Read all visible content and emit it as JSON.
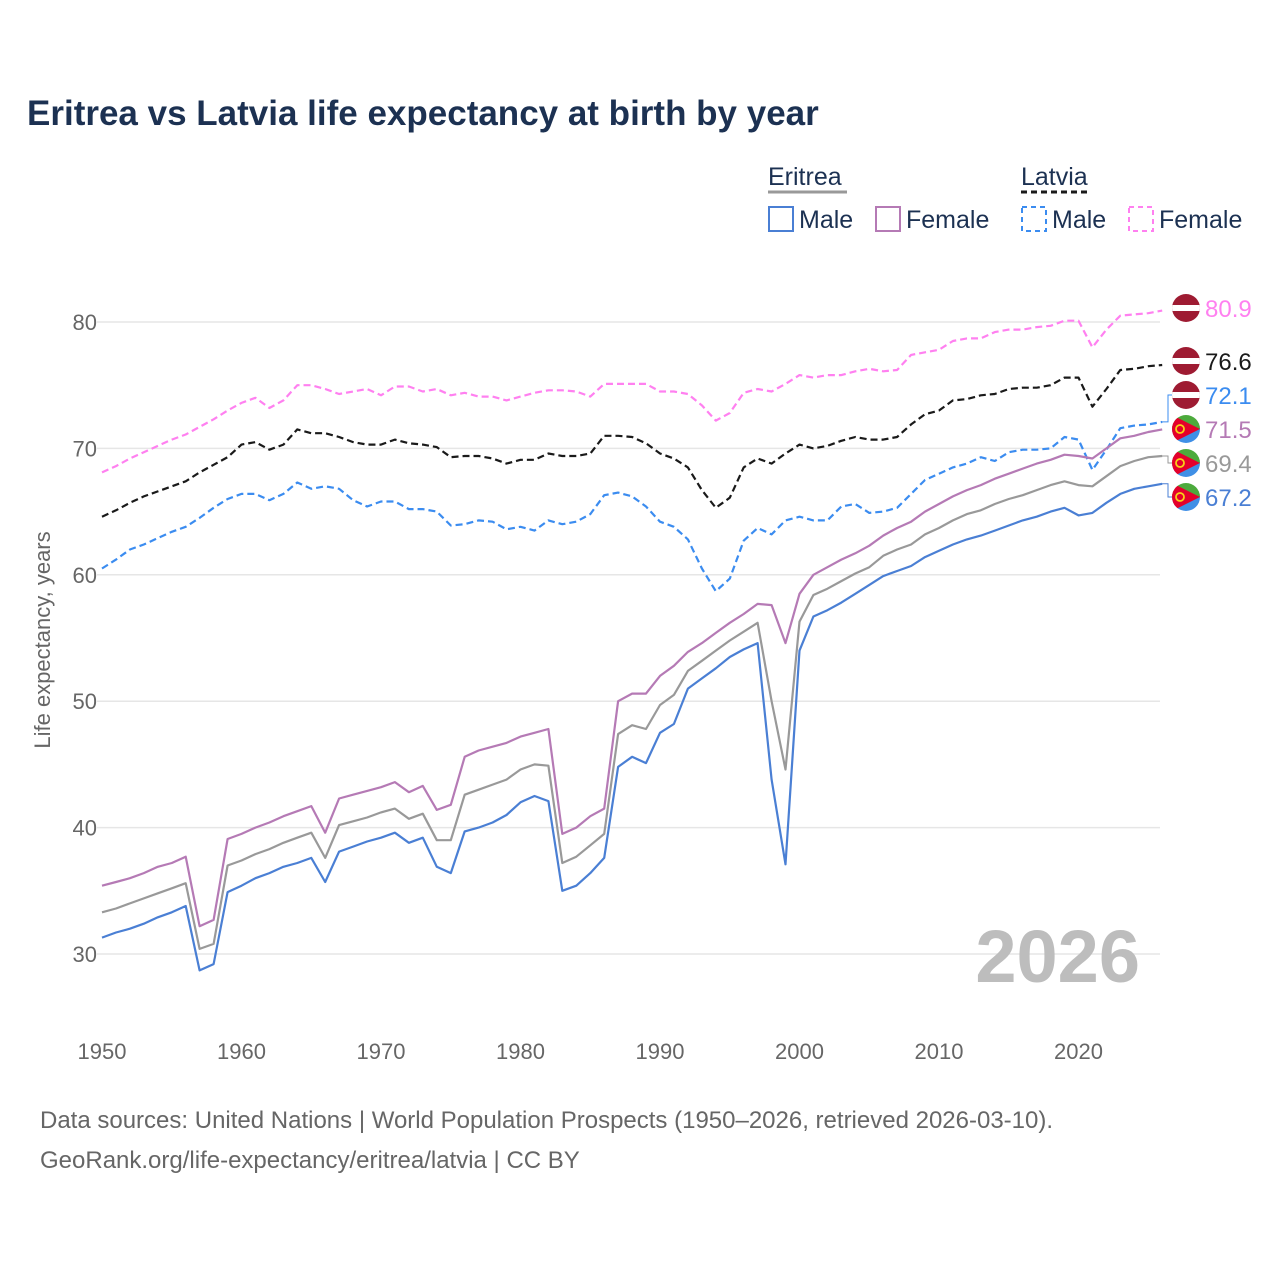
{
  "chart_data": {
    "type": "line",
    "title": "Eritrea vs Latvia life expectancy at birth by year",
    "xlabel": "",
    "ylabel": "Life expectancy, years",
    "xlim": [
      1950,
      2026
    ],
    "ylim": [
      25,
      85
    ],
    "x_ticks": [
      1950,
      1960,
      1970,
      1980,
      1990,
      2000,
      2010,
      2020
    ],
    "y_ticks": [
      30,
      40,
      50,
      60,
      70,
      80
    ],
    "grid": true,
    "year_watermark": "2026",
    "legend": {
      "placement": "top-right",
      "groups": [
        {
          "name": "Eritrea",
          "items": [
            "Male",
            "Female"
          ]
        },
        {
          "name": "Latvia",
          "items": [
            "Male",
            "Female"
          ]
        }
      ]
    },
    "x_start": 1950,
    "series": [
      {
        "name": "Latvia Female",
        "color": "#ff80f0",
        "dashed": true,
        "end_label": "80.9",
        "flag": "latvia",
        "values": [
          68.1,
          68.6,
          69.2,
          69.7,
          70.2,
          70.7,
          71.1,
          71.7,
          72.3,
          73.0,
          73.6,
          74.0,
          73.2,
          73.8,
          75.0,
          75.0,
          74.7,
          74.3,
          74.5,
          74.7,
          74.2,
          74.9,
          74.9,
          74.5,
          74.7,
          74.2,
          74.4,
          74.1,
          74.1,
          73.8,
          74.1,
          74.4,
          74.6,
          74.6,
          74.5,
          74.1,
          75.1,
          75.1,
          75.1,
          75.1,
          74.5,
          74.5,
          74.3,
          73.4,
          72.2,
          72.8,
          74.4,
          74.7,
          74.5,
          75.1,
          75.8,
          75.6,
          75.8,
          75.8,
          76.1,
          76.3,
          76.1,
          76.2,
          77.4,
          77.6,
          77.8,
          78.5,
          78.7,
          78.7,
          79.2,
          79.4,
          79.4,
          79.6,
          79.7,
          80.1,
          80.1,
          78.0,
          79.4,
          80.5,
          80.6,
          80.7,
          80.9
        ]
      },
      {
        "name": "Latvia",
        "color": "#1a1a1a",
        "dashed": true,
        "end_label": "76.6",
        "flag": "latvia",
        "values": [
          64.6,
          65.1,
          65.7,
          66.2,
          66.6,
          67.0,
          67.4,
          68.1,
          68.7,
          69.3,
          70.3,
          70.5,
          69.9,
          70.3,
          71.5,
          71.2,
          71.2,
          70.9,
          70.5,
          70.3,
          70.3,
          70.7,
          70.4,
          70.3,
          70.1,
          69.3,
          69.4,
          69.4,
          69.2,
          68.8,
          69.1,
          69.1,
          69.6,
          69.4,
          69.4,
          69.6,
          71.0,
          71.0,
          70.9,
          70.4,
          69.6,
          69.2,
          68.5,
          66.7,
          65.3,
          66.1,
          68.5,
          69.2,
          68.8,
          69.6,
          70.3,
          70.0,
          70.2,
          70.6,
          70.9,
          70.7,
          70.7,
          70.9,
          71.9,
          72.7,
          73.0,
          73.8,
          73.9,
          74.2,
          74.3,
          74.7,
          74.8,
          74.8,
          75.0,
          75.6,
          75.6,
          73.3,
          74.7,
          76.2,
          76.3,
          76.5,
          76.6
        ]
      },
      {
        "name": "Latvia Male",
        "color": "#3b8cf0",
        "dashed": true,
        "end_label": "72.1",
        "flag": "latvia",
        "values": [
          60.5,
          61.2,
          62.0,
          62.4,
          62.9,
          63.4,
          63.8,
          64.5,
          65.3,
          66.0,
          66.4,
          66.4,
          65.9,
          66.4,
          67.3,
          66.8,
          67.0,
          66.8,
          65.9,
          65.4,
          65.8,
          65.8,
          65.2,
          65.2,
          65.0,
          63.9,
          64.0,
          64.3,
          64.2,
          63.6,
          63.8,
          63.5,
          64.3,
          64.0,
          64.2,
          64.8,
          66.3,
          66.5,
          66.2,
          65.4,
          64.2,
          63.8,
          62.8,
          60.5,
          58.7,
          59.7,
          62.7,
          63.7,
          63.2,
          64.3,
          64.6,
          64.3,
          64.3,
          65.4,
          65.6,
          64.9,
          65.0,
          65.3,
          66.4,
          67.5,
          68.0,
          68.5,
          68.8,
          69.3,
          69.0,
          69.7,
          69.9,
          69.9,
          70.0,
          70.9,
          70.7,
          68.3,
          69.9,
          71.6,
          71.8,
          71.9,
          72.1
        ]
      },
      {
        "name": "Eritrea Female",
        "color": "#b57ab5",
        "dashed": false,
        "end_label": "71.5",
        "flag": "eritrea",
        "values": [
          35.4,
          35.7,
          36.0,
          36.4,
          36.9,
          37.2,
          37.7,
          32.2,
          32.7,
          39.1,
          39.5,
          40.0,
          40.4,
          40.9,
          41.3,
          41.7,
          39.6,
          42.3,
          42.6,
          42.9,
          43.2,
          43.6,
          42.8,
          43.3,
          41.4,
          41.8,
          45.6,
          46.1,
          46.4,
          46.7,
          47.2,
          47.5,
          47.8,
          39.5,
          40.0,
          40.9,
          41.5,
          50.0,
          50.6,
          50.6,
          52.0,
          52.8,
          53.9,
          54.6,
          55.4,
          56.2,
          56.9,
          57.7,
          57.6,
          54.6,
          58.5,
          60.0,
          60.6,
          61.2,
          61.7,
          62.3,
          63.1,
          63.7,
          64.2,
          65.0,
          65.6,
          66.2,
          66.7,
          67.1,
          67.6,
          68.0,
          68.4,
          68.8,
          69.1,
          69.5,
          69.4,
          69.2,
          70.0,
          70.8,
          71.0,
          71.3,
          71.5
        ]
      },
      {
        "name": "Eritrea",
        "color": "#999999",
        "dashed": false,
        "end_label": "69.4",
        "flag": "eritrea",
        "values": [
          33.3,
          33.6,
          34.0,
          34.4,
          34.8,
          35.2,
          35.6,
          30.4,
          30.8,
          37.0,
          37.4,
          37.9,
          38.3,
          38.8,
          39.2,
          39.6,
          37.6,
          40.2,
          40.5,
          40.8,
          41.2,
          41.5,
          40.7,
          41.1,
          39.0,
          39.0,
          42.6,
          43.0,
          43.4,
          43.8,
          44.6,
          45.0,
          44.9,
          37.2,
          37.7,
          38.6,
          39.5,
          47.4,
          48.1,
          47.8,
          49.7,
          50.5,
          52.4,
          53.2,
          54.0,
          54.8,
          55.5,
          56.2,
          50.0,
          44.6,
          56.3,
          58.4,
          58.9,
          59.5,
          60.1,
          60.6,
          61.5,
          62.0,
          62.4,
          63.2,
          63.7,
          64.3,
          64.8,
          65.1,
          65.6,
          66.0,
          66.3,
          66.7,
          67.1,
          67.4,
          67.1,
          67.0,
          67.8,
          68.6,
          69.0,
          69.3,
          69.4
        ]
      },
      {
        "name": "Eritrea Male",
        "color": "#4a7fd4",
        "dashed": false,
        "end_label": "67.2",
        "flag": "eritrea",
        "values": [
          31.3,
          31.7,
          32.0,
          32.4,
          32.9,
          33.3,
          33.8,
          28.7,
          29.2,
          34.9,
          35.4,
          36.0,
          36.4,
          36.9,
          37.2,
          37.6,
          35.7,
          38.1,
          38.5,
          38.9,
          39.2,
          39.6,
          38.8,
          39.2,
          36.9,
          36.4,
          39.7,
          40.0,
          40.4,
          41.0,
          42.0,
          42.5,
          42.1,
          35.0,
          35.4,
          36.4,
          37.6,
          44.8,
          45.6,
          45.1,
          47.5,
          48.2,
          51.0,
          51.8,
          52.6,
          53.5,
          54.1,
          54.6,
          43.8,
          37.1,
          54.0,
          56.7,
          57.2,
          57.8,
          58.5,
          59.2,
          59.9,
          60.3,
          60.7,
          61.4,
          61.9,
          62.4,
          62.8,
          63.1,
          63.5,
          63.9,
          64.3,
          64.6,
          65.0,
          65.3,
          64.7,
          64.9,
          65.7,
          66.4,
          66.8,
          67.0,
          67.2
        ]
      }
    ]
  },
  "footer": {
    "line1": "Data sources: United Nations | World Population Prospects (1950–2026, retrieved 2026-03-10).",
    "line2": "GeoRank.org/life-expectancy/eritrea/latvia | CC BY"
  }
}
